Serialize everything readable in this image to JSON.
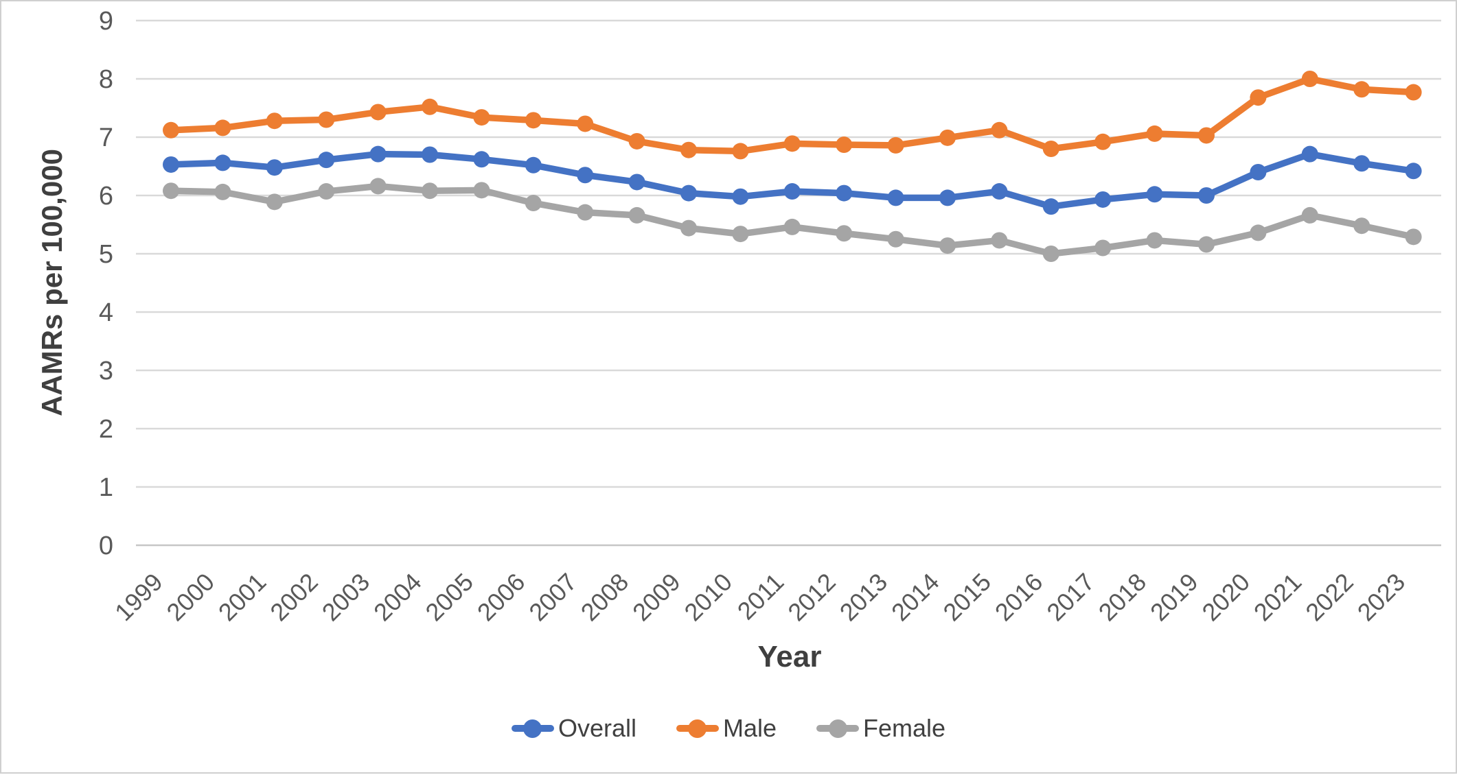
{
  "chart_data": {
    "type": "line",
    "title": "",
    "xlabel": "Year",
    "ylabel": "AAMRs per 100,000",
    "ylim": [
      0,
      9
    ],
    "yticks": [
      0,
      1,
      2,
      3,
      4,
      5,
      6,
      7,
      8,
      9
    ],
    "grid": true,
    "vertical_grid": false,
    "legend_position": "bottom",
    "categories": [
      "1999",
      "2000",
      "2001",
      "2002",
      "2003",
      "2004",
      "2005",
      "2006",
      "2007",
      "2008",
      "2009",
      "2010",
      "2011",
      "2012",
      "2013",
      "2014",
      "2015",
      "2016",
      "2017",
      "2018",
      "2019",
      "2020",
      "2021",
      "2022",
      "2023"
    ],
    "series": [
      {
        "name": "Overall",
        "color": "#4472C4",
        "values": [
          6.53,
          6.56,
          6.48,
          6.61,
          6.71,
          6.7,
          6.62,
          6.52,
          6.35,
          6.23,
          6.04,
          5.98,
          6.07,
          6.04,
          5.96,
          5.96,
          6.07,
          5.81,
          5.93,
          6.02,
          6.0,
          6.4,
          6.71,
          6.55,
          6.42
        ]
      },
      {
        "name": "Male",
        "color": "#ED7D31",
        "values": [
          7.12,
          7.16,
          7.28,
          7.3,
          7.43,
          7.52,
          7.34,
          7.29,
          7.23,
          6.93,
          6.78,
          6.76,
          6.89,
          6.87,
          6.86,
          6.99,
          7.12,
          6.8,
          6.92,
          7.06,
          7.03,
          7.68,
          8.0,
          7.82,
          7.77
        ]
      },
      {
        "name": "Female",
        "color": "#A5A5A5",
        "values": [
          6.08,
          6.06,
          5.89,
          6.07,
          6.16,
          6.08,
          6.09,
          5.87,
          5.71,
          5.66,
          5.44,
          5.34,
          5.46,
          5.35,
          5.25,
          5.14,
          5.23,
          5.0,
          5.1,
          5.23,
          5.16,
          5.36,
          5.66,
          5.48,
          5.29
        ]
      }
    ],
    "style": {
      "background": "#FFFFFF",
      "frame_border_color": "#CFCFCF",
      "gridline_color": "#D9D9D9",
      "baseline_color": "#C6C6C6",
      "tick_label_color": "#595959",
      "axis_title_color": "#3F3F3F",
      "legend_text_color": "#404040"
    }
  }
}
